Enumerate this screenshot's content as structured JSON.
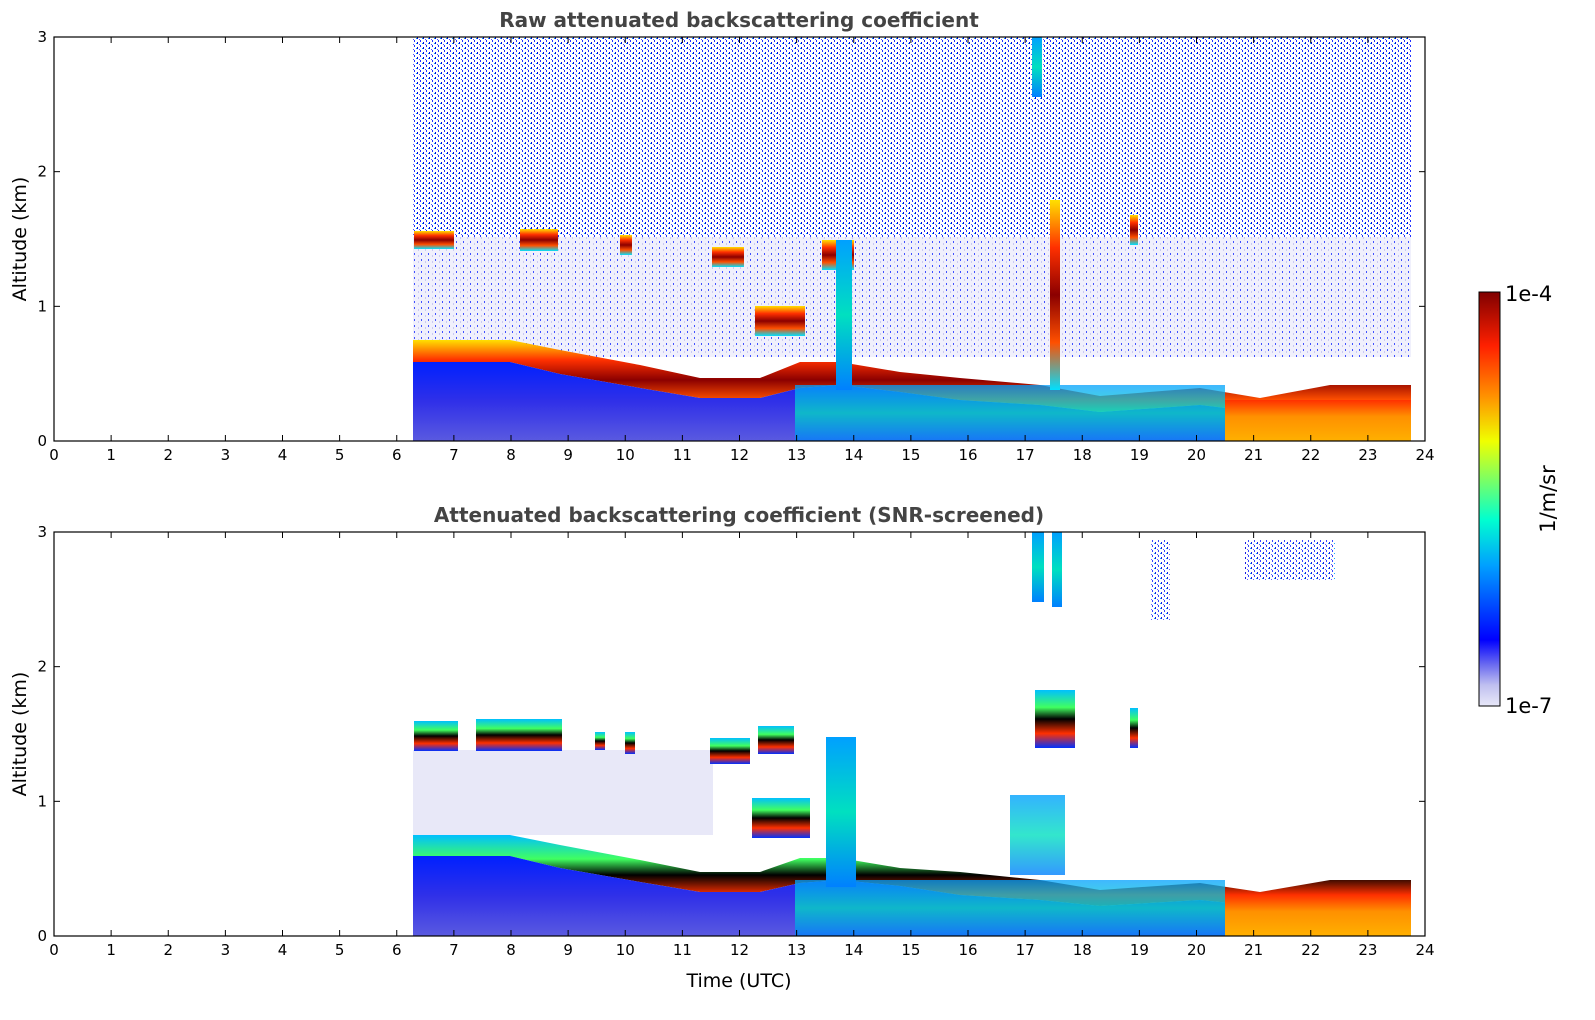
{
  "chart_data": [
    {
      "type": "heatmap",
      "title": "Raw attenuated backscattering coefficient",
      "xlabel": "",
      "ylabel": "Altitude (km)",
      "xlim": [
        0,
        24
      ],
      "ylim": [
        0,
        3
      ],
      "x_ticks": [
        "0",
        "1",
        "2",
        "3",
        "4",
        "5",
        "6",
        "7",
        "8",
        "9",
        "10",
        "11",
        "12",
        "13",
        "14",
        "15",
        "16",
        "17",
        "18",
        "19",
        "20",
        "21",
        "22",
        "23",
        "24"
      ],
      "y_ticks": [
        "0",
        "1",
        "2",
        "3"
      ],
      "data_start_hour": 6.25,
      "data_end_hour": 23.75,
      "layers": [
        {
          "name": "boundary layer top",
          "altitude_km_start": 0.65,
          "altitude_km_end": 0.3
        },
        {
          "name": "cloud layer",
          "altitude_km": 1.5,
          "hours": [
            6.3,
            12.9
          ]
        }
      ],
      "screened": false
    },
    {
      "type": "heatmap",
      "title": "Attenuated backscattering coefficient (SNR-screened)",
      "xlabel": "Time (UTC)",
      "ylabel": "Altitude (km)",
      "xlim": [
        0,
        24
      ],
      "ylim": [
        0,
        3
      ],
      "x_ticks": [
        "0",
        "1",
        "2",
        "3",
        "4",
        "5",
        "6",
        "7",
        "8",
        "9",
        "10",
        "11",
        "12",
        "13",
        "14",
        "15",
        "16",
        "17",
        "18",
        "19",
        "20",
        "21",
        "22",
        "23",
        "24"
      ],
      "y_ticks": [
        "0",
        "1",
        "2",
        "3"
      ],
      "data_start_hour": 6.25,
      "data_end_hour": 23.75,
      "screened": true
    }
  ],
  "colorbar": {
    "label": "1/m/sr",
    "max_label": "1e-4",
    "min_label": "1e-7",
    "min": 1e-07,
    "max": 0.0001,
    "colormap": "jet"
  }
}
